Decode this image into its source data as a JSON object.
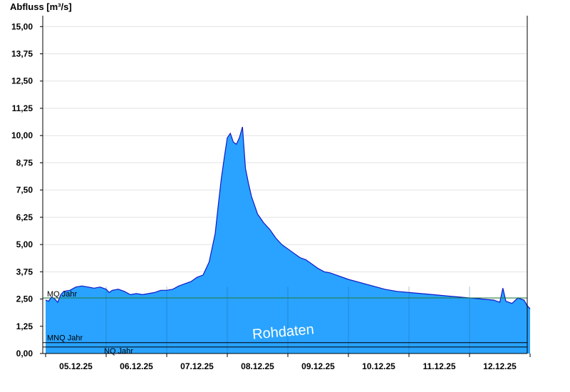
{
  "chart_data": {
    "type": "area",
    "ylabel": "Abfluss [m³/s]",
    "xlabel": "",
    "ylim": [
      0,
      15.5
    ],
    "yticks": [
      "0,00",
      "1,25",
      "2,50",
      "3,75",
      "5,00",
      "6,25",
      "7,50",
      "8,75",
      "10,00",
      "11,25",
      "12,50",
      "13,75",
      "15,00"
    ],
    "xticks": [
      "05.12.25",
      "06.12.25",
      "07.12.25",
      "08.12.25",
      "09.12.25",
      "10.12.25",
      "11.12.25",
      "12.12.25"
    ],
    "xlim_days": [
      0,
      8
    ],
    "grid": true,
    "series": [
      {
        "x": [
          0.0,
          0.05,
          0.1,
          0.15,
          0.2,
          0.25,
          0.3,
          0.4,
          0.5,
          0.6,
          0.7,
          0.8,
          0.9,
          1.0,
          1.05,
          1.1,
          1.2,
          1.3,
          1.4,
          1.5,
          1.6,
          1.7,
          1.8,
          1.9,
          2.0,
          2.1,
          2.2,
          2.3,
          2.4,
          2.5,
          2.6,
          2.7,
          2.8,
          2.85,
          2.9,
          2.95,
          3.0,
          3.05,
          3.1,
          3.15,
          3.2,
          3.25,
          3.3,
          3.35,
          3.4,
          3.45,
          3.5,
          3.55,
          3.6,
          3.7,
          3.8,
          3.9,
          4.0,
          4.1,
          4.2,
          4.3,
          4.4,
          4.5,
          4.6,
          4.7,
          4.8,
          4.9,
          5.0,
          5.2,
          5.4,
          5.6,
          5.8,
          6.0,
          6.2,
          6.4,
          6.6,
          6.8,
          7.0,
          7.2,
          7.4,
          7.5,
          7.55,
          7.6,
          7.7,
          7.8,
          7.9,
          7.95,
          8.0
        ],
        "values": [
          2.45,
          2.4,
          2.6,
          2.5,
          2.35,
          2.7,
          2.85,
          2.9,
          3.05,
          3.1,
          3.05,
          3.0,
          3.05,
          2.95,
          2.8,
          2.9,
          2.95,
          2.85,
          2.7,
          2.75,
          2.7,
          2.75,
          2.8,
          2.9,
          2.9,
          2.95,
          3.1,
          3.2,
          3.3,
          3.5,
          3.6,
          4.2,
          5.5,
          6.8,
          8.0,
          9.0,
          9.9,
          10.1,
          9.7,
          9.6,
          9.9,
          10.4,
          8.5,
          7.8,
          7.2,
          6.8,
          6.4,
          6.2,
          6.0,
          5.7,
          5.3,
          5.0,
          4.8,
          4.6,
          4.4,
          4.3,
          4.1,
          3.9,
          3.75,
          3.7,
          3.6,
          3.5,
          3.4,
          3.25,
          3.1,
          2.95,
          2.85,
          2.8,
          2.75,
          2.7,
          2.65,
          2.6,
          2.55,
          2.5,
          2.45,
          2.35,
          3.0,
          2.4,
          2.3,
          2.55,
          2.45,
          2.2,
          2.05
        ]
      }
    ],
    "reference_lines": [
      {
        "label": "MQ Jahr",
        "value": 2.55,
        "color": "#1f7a3a"
      },
      {
        "label": "MNQ Jahr",
        "value": 0.5,
        "color": "#000000"
      },
      {
        "label": "NQ Jahr",
        "value": 0.3,
        "color": "#000000"
      }
    ],
    "colors": {
      "fill": "#29a3ff",
      "line": "#1018c8",
      "grid": "#e2e2e2"
    },
    "watermark": "Rohdaten"
  }
}
